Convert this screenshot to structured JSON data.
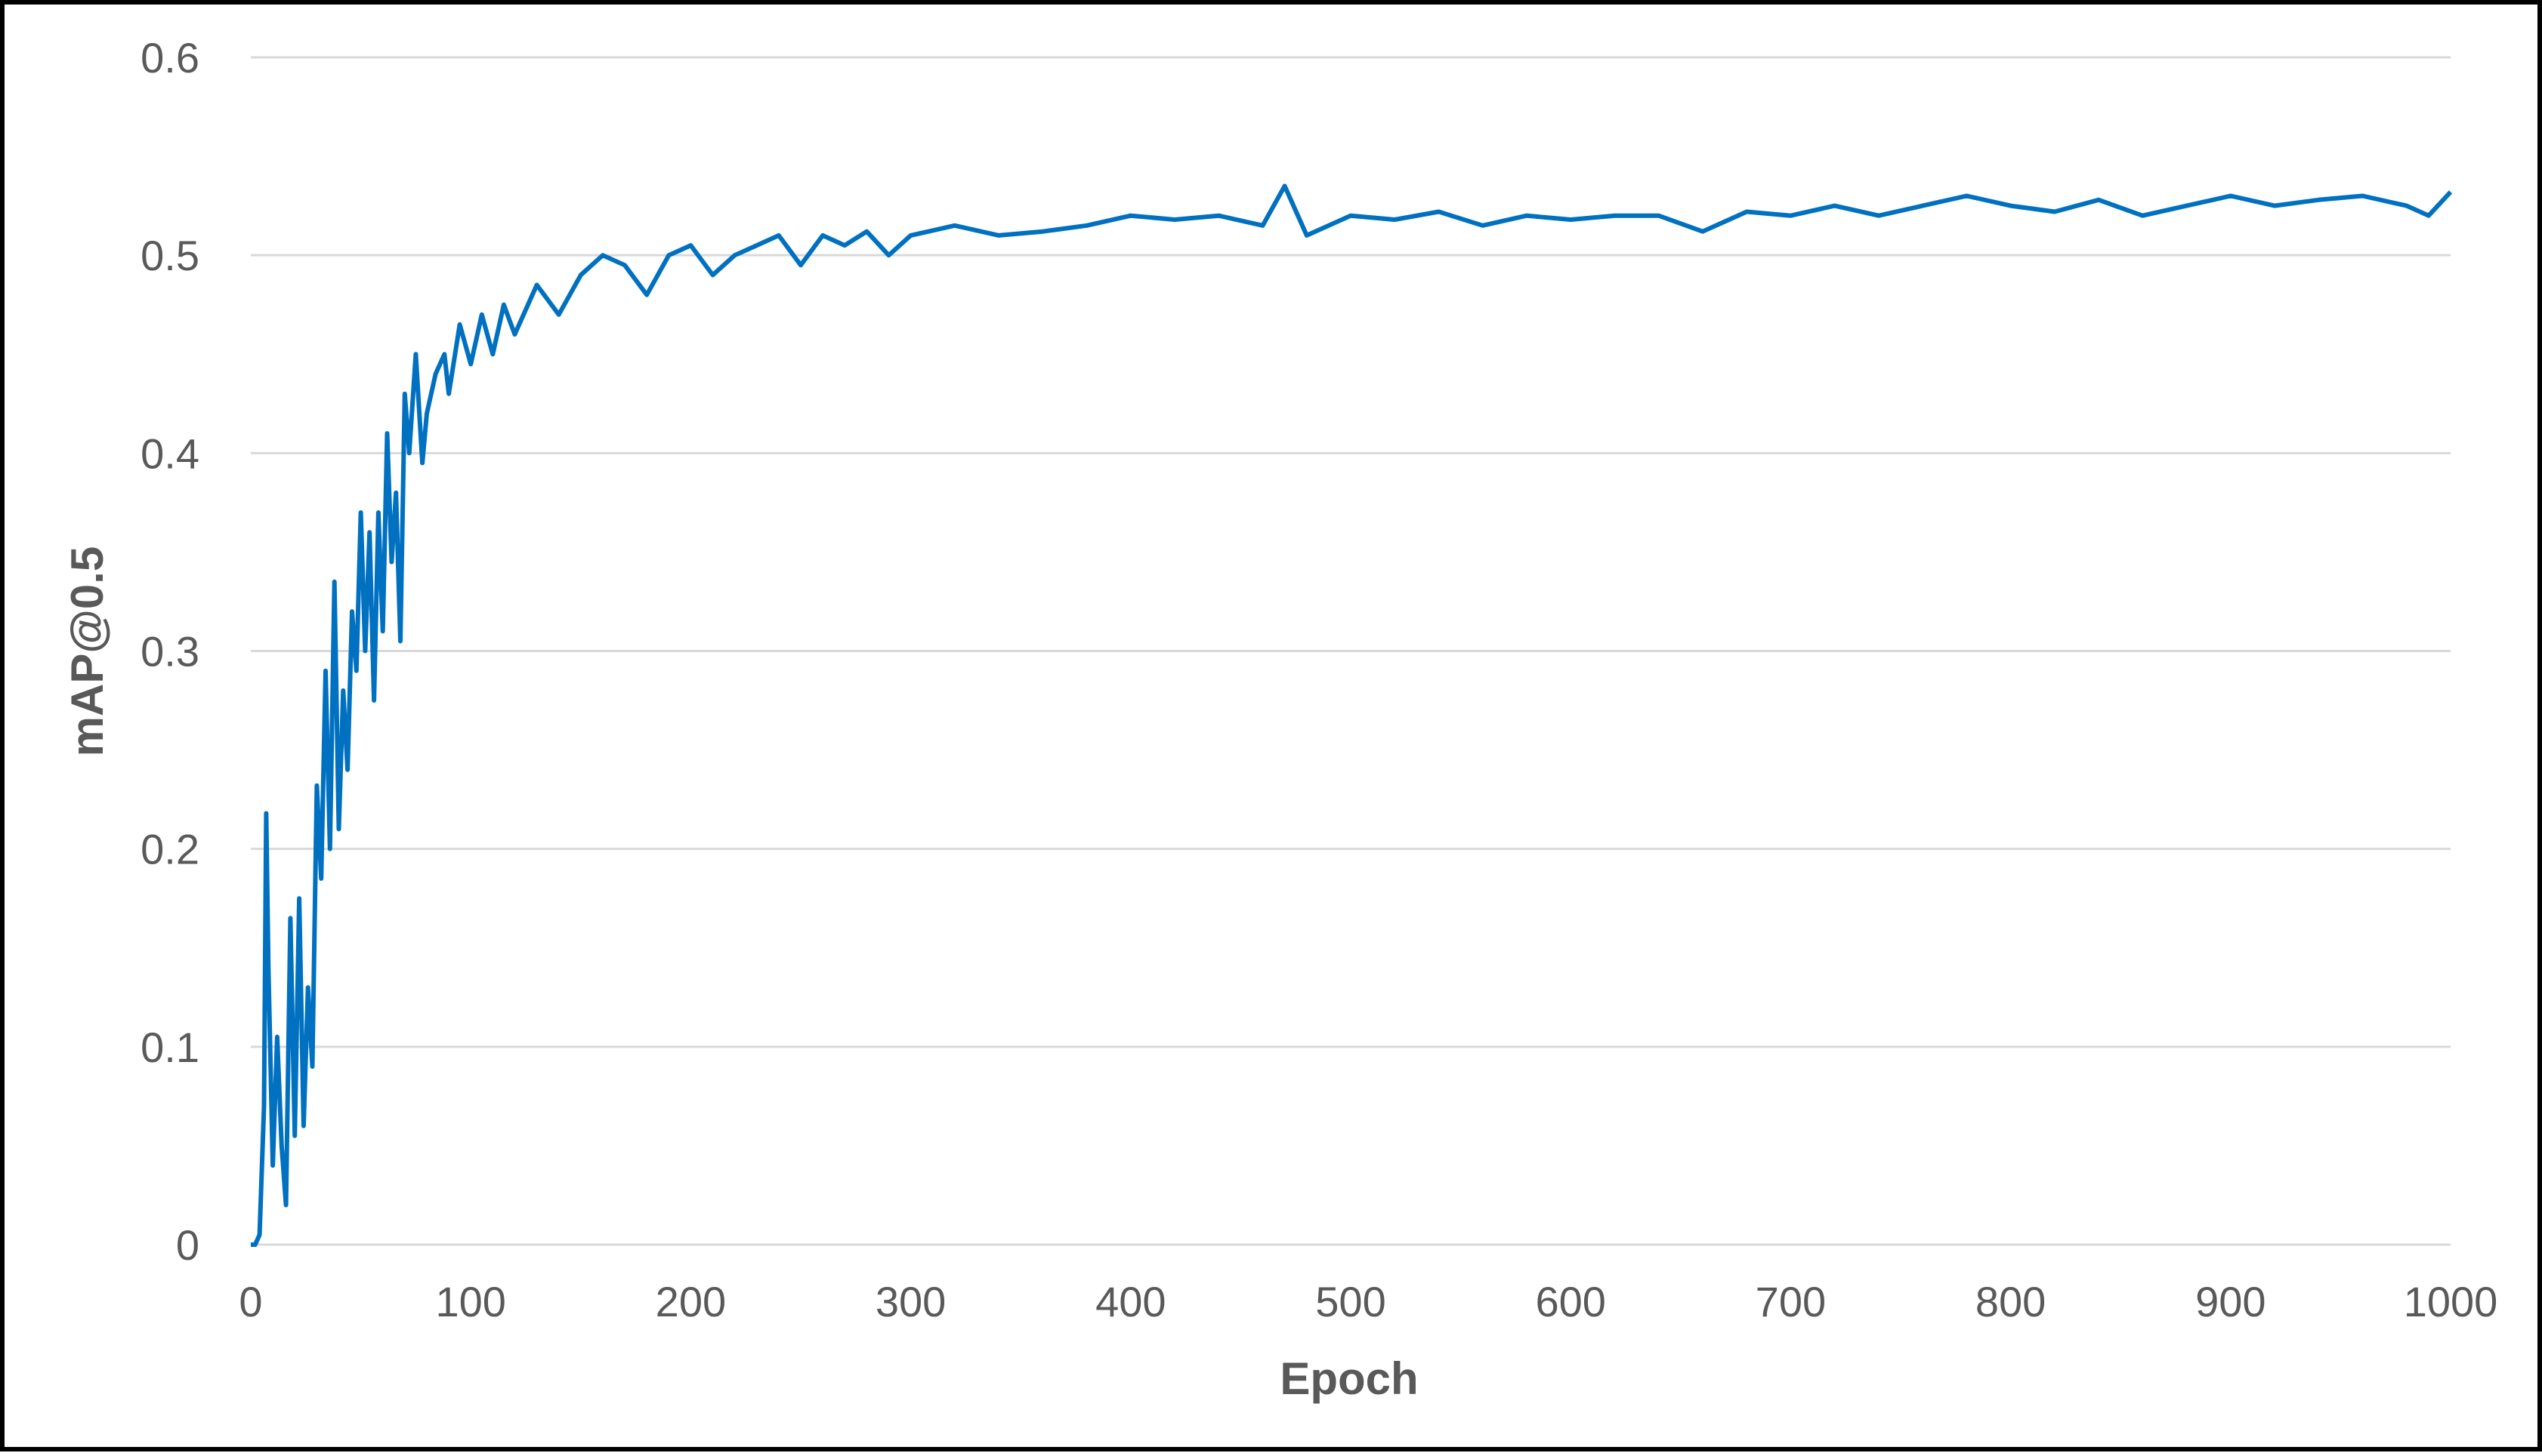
{
  "chart_data": {
    "type": "line",
    "title": "",
    "xlabel": "Epoch",
    "ylabel": "mAP@0.5",
    "xlim": [
      0,
      1000
    ],
    "ylim": [
      0,
      0.6
    ],
    "x_ticks": [
      "0",
      "100",
      "200",
      "300",
      "400",
      "500",
      "600",
      "700",
      "800",
      "900",
      "1000"
    ],
    "y_ticks": [
      "0",
      "0.1",
      "0.2",
      "0.3",
      "0.4",
      "0.5",
      "0.6"
    ],
    "grid": true,
    "legend": "none",
    "colors": {
      "line": "#0070C0",
      "grid": "#D9D9D9",
      "text": "#595959",
      "frame": "#000000"
    },
    "series": [
      {
        "x": [
          0,
          2,
          4,
          6,
          7,
          8,
          10,
          12,
          14,
          16,
          18,
          20,
          22,
          24,
          26,
          28,
          30,
          32,
          34,
          36,
          38,
          40,
          42,
          44,
          46,
          48,
          50,
          52,
          54,
          56,
          58,
          60,
          62,
          64,
          66,
          68,
          70,
          72,
          75,
          78,
          80,
          84,
          88,
          90,
          95,
          100,
          105,
          110,
          115,
          120,
          130,
          140,
          150,
          160,
          170,
          180,
          190,
          200,
          210,
          220,
          230,
          240,
          250,
          260,
          270,
          280,
          290,
          300,
          320,
          340,
          360,
          380,
          400,
          420,
          440,
          460,
          470,
          480,
          500,
          520,
          540,
          560,
          580,
          600,
          620,
          640,
          660,
          680,
          700,
          720,
          740,
          760,
          780,
          800,
          820,
          840,
          860,
          880,
          900,
          920,
          940,
          960,
          980,
          990,
          1000
        ],
        "y": [
          0,
          0,
          0.005,
          0.07,
          0.218,
          0.14,
          0.04,
          0.105,
          0.05,
          0.02,
          0.165,
          0.055,
          0.175,
          0.06,
          0.13,
          0.09,
          0.232,
          0.185,
          0.29,
          0.2,
          0.335,
          0.21,
          0.28,
          0.24,
          0.32,
          0.29,
          0.37,
          0.3,
          0.36,
          0.275,
          0.37,
          0.31,
          0.41,
          0.345,
          0.38,
          0.305,
          0.43,
          0.4,
          0.45,
          0.395,
          0.42,
          0.44,
          0.45,
          0.43,
          0.465,
          0.445,
          0.47,
          0.45,
          0.475,
          0.46,
          0.485,
          0.47,
          0.49,
          0.5,
          0.495,
          0.48,
          0.5,
          0.505,
          0.49,
          0.5,
          0.505,
          0.51,
          0.495,
          0.51,
          0.505,
          0.512,
          0.5,
          0.51,
          0.515,
          0.51,
          0.512,
          0.515,
          0.52,
          0.518,
          0.52,
          0.515,
          0.535,
          0.51,
          0.52,
          0.518,
          0.522,
          0.515,
          0.52,
          0.518,
          0.52,
          0.52,
          0.512,
          0.522,
          0.52,
          0.525,
          0.52,
          0.525,
          0.53,
          0.525,
          0.522,
          0.528,
          0.52,
          0.525,
          0.53,
          0.525,
          0.528,
          0.53,
          0.525,
          0.52,
          0.532
        ]
      }
    ]
  }
}
